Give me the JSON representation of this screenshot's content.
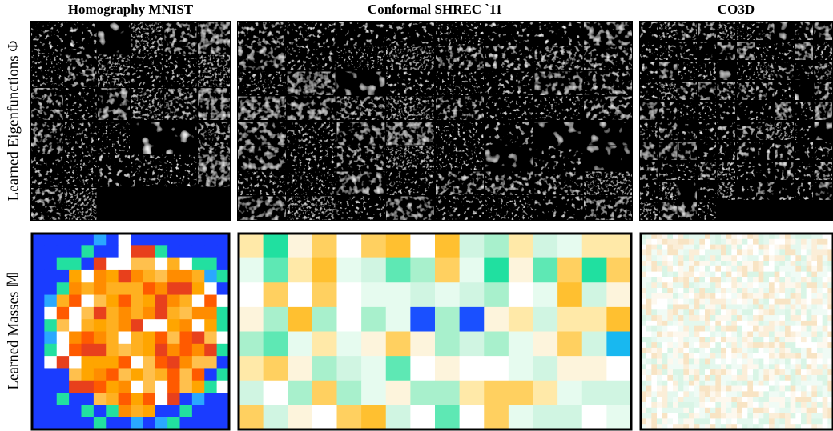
{
  "columns": [
    {
      "title": "Homography MNIST"
    },
    {
      "title": "Conformal SHREC `11"
    },
    {
      "title": "CO3D"
    }
  ],
  "rows": [
    {
      "label": "Learned Eigenfunctions Φ"
    },
    {
      "label": "Learned Masses 𝕄"
    }
  ]
}
